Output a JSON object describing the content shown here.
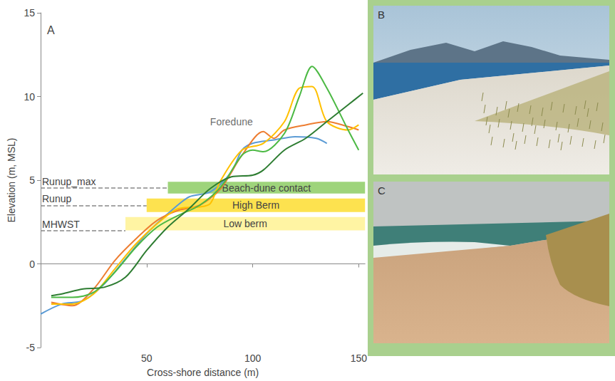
{
  "chart_data": {
    "type": "line",
    "panel": "A",
    "x_label": "Cross-shore distance (m)",
    "y_label": "Elevation (m, MSL)",
    "xlim": [
      0,
      153
    ],
    "xticks": [
      50,
      100,
      150
    ],
    "ylim": [
      -5,
      15
    ],
    "yticks": [
      -5,
      0,
      5,
      10,
      15
    ],
    "grid": false,
    "series": [
      {
        "color": "#5b9bd5",
        "x": [
          0,
          10,
          20,
          30,
          40,
          50,
          60,
          70,
          80,
          90,
          95,
          100,
          110,
          120,
          130,
          135
        ],
        "values": [
          -3,
          -2.4,
          -2.2,
          -1.2,
          0.3,
          1.8,
          3,
          4,
          4.3,
          5.5,
          6.8,
          7.2,
          7.4,
          7.6,
          7.5,
          7.2
        ]
      },
      {
        "color": "#ed7d31",
        "x": [
          5,
          15,
          25,
          35,
          45,
          55,
          65,
          75,
          85,
          95,
          105,
          110,
          115,
          125,
          135,
          145,
          150
        ],
        "values": [
          -2.3,
          -2.5,
          -1.5,
          0.2,
          1.5,
          2.6,
          3.2,
          3.5,
          4.5,
          6.5,
          7.9,
          7.5,
          8,
          8.3,
          8.5,
          8.2,
          8
        ]
      },
      {
        "color": "#ffc000",
        "x": [
          5,
          15,
          25,
          35,
          45,
          55,
          65,
          75,
          80,
          85,
          95,
          105,
          115,
          122,
          128,
          135,
          145,
          150
        ],
        "values": [
          -2.4,
          -2.4,
          -1.8,
          -0.3,
          1.2,
          2.4,
          3.3,
          3.4,
          3.6,
          5,
          6.8,
          7.2,
          8.5,
          10.5,
          10.6,
          8.5,
          8,
          8.3
        ]
      },
      {
        "color": "#4cb944",
        "x": [
          5,
          15,
          25,
          35,
          45,
          55,
          65,
          75,
          85,
          95,
          100,
          105,
          115,
          122,
          128,
          135,
          145,
          150
        ],
        "values": [
          -2,
          -2,
          -1.7,
          -0.5,
          1,
          2.2,
          2.9,
          3.5,
          4.6,
          6.5,
          6.8,
          6.7,
          7.8,
          10,
          11.8,
          10.5,
          8,
          6.8
        ]
      },
      {
        "color": "#2e7d32",
        "x": [
          5,
          10,
          20,
          30,
          40,
          50,
          60,
          70,
          80,
          90,
          100,
          105,
          115,
          125,
          135,
          145,
          152
        ],
        "values": [
          -1.9,
          -1.8,
          -1.5,
          -1.4,
          -0.8,
          0.8,
          2.2,
          3.3,
          4.5,
          5.2,
          5.3,
          5.6,
          6.8,
          7.5,
          8.5,
          9.5,
          10.2
        ]
      }
    ],
    "bands": [
      {
        "label": "Beach-dune contact",
        "color": "#9ed47b",
        "x": [
          60,
          153
        ],
        "y": [
          4.2,
          4.9
        ]
      },
      {
        "label": "High Berm",
        "color": "#fde24f",
        "x": [
          50,
          153
        ],
        "y": [
          3.1,
          3.9
        ]
      },
      {
        "label": "Low berm",
        "color": "#fff4a3",
        "x": [
          40,
          153
        ],
        "y": [
          2.0,
          2.8
        ]
      }
    ],
    "reference_lines": [
      {
        "label": "Runup_max",
        "value": 4.55,
        "x": [
          0,
          60
        ]
      },
      {
        "label": "Runup",
        "value": 3.5,
        "x": [
          0,
          50
        ]
      },
      {
        "label": "MHWST",
        "value": 2.0,
        "x": [
          0,
          40
        ]
      }
    ],
    "annotations": [
      {
        "text": "Foredune",
        "x": 90,
        "y": 8.5
      }
    ]
  },
  "photos": [
    {
      "panel": "B"
    },
    {
      "panel": "C"
    }
  ]
}
